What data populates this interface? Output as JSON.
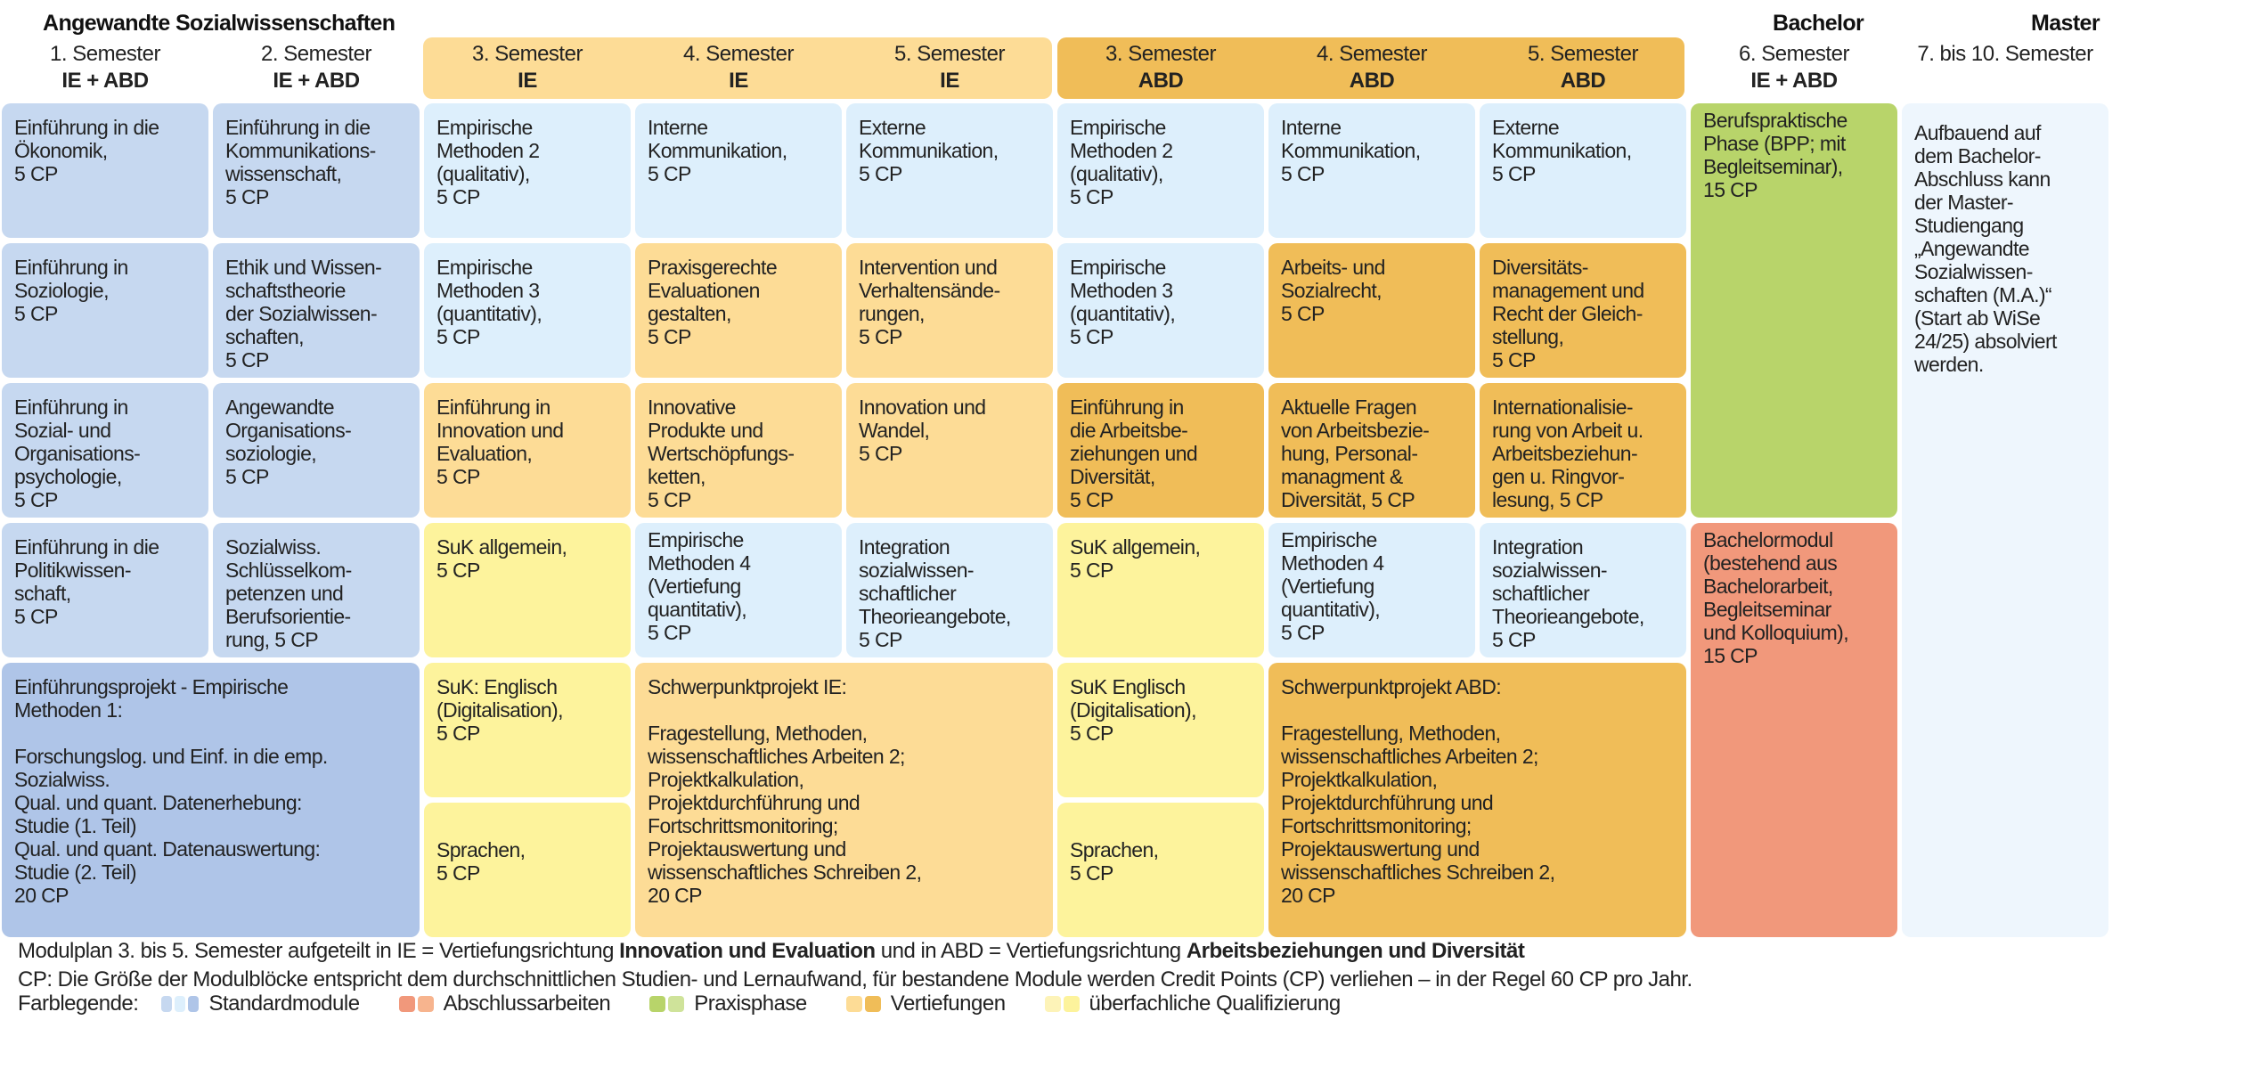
{
  "title": "Angewandte Sozialwissenschaften",
  "degrees": {
    "bachelor": "Bachelor",
    "master": "Master"
  },
  "headers": [
    {
      "sem": "1. Semester",
      "track": "IE + ABD"
    },
    {
      "sem": "2. Semester",
      "track": "IE + ABD"
    },
    {
      "sem": "3. Semester",
      "track": "IE"
    },
    {
      "sem": "4. Semester",
      "track": "IE"
    },
    {
      "sem": "5. Semester",
      "track": "IE"
    },
    {
      "sem": "3. Semester",
      "track": "ABD"
    },
    {
      "sem": "4. Semester",
      "track": "ABD"
    },
    {
      "sem": "5. Semester",
      "track": "ABD"
    },
    {
      "sem": "6. Semester",
      "track": "IE + ABD"
    },
    {
      "sem": "7. bis 10. Semester",
      "track": ""
    }
  ],
  "cells": {
    "c1r1": "Einführung in die\nÖkonomik,\n5 CP",
    "c1r2": "Einführung in\nSoziologie,\n5 CP",
    "c1r3": "Einführung in\nSozial- und\nOrganisations-\npsychologie,\n5 CP",
    "c1r4": "Einführung in die\nPolitikwissen-\nschaft,\n5 CP",
    "c2r1": "Einführung in die\nKommunikations-\nwissenschaft,\n5 CP",
    "c2r2": "Ethik und Wissen-\nschaftstheorie\nder Sozialwissen-\nschaften,\n5 CP",
    "c2r3": "Angewandte\nOrganisations-\nsoziologie,\n5 CP",
    "c2r4": "Sozialwiss.\nSchlüsselkom-\npetenzen und\nBerufsorientie-\nrung,   5 CP",
    "proj1": "Einführungsprojekt - Empirische\nMethoden 1:\n\nForschungslog. und Einf. in die emp.\nSozialwiss.\nQual. und quant. Datenerhebung:\nStudie (1. Teil)\nQual. und quant. Datenauswertung:\nStudie (2. Teil)\n20 CP",
    "c3r1": "Empirische\nMethoden 2\n(qualitativ),\n5 CP",
    "c3r2": "Empirische\nMethoden 3\n(quantitativ),\n5 CP",
    "c3r3": "Einführung in\nInnovation und\nEvaluation,\n5 CP",
    "c3r4": "SuK allgemein,\n5 CP",
    "c3r5": "SuK: Englisch\n(Digitalisation),\n5 CP",
    "c3r6": "Sprachen,\n5 CP",
    "c4r1": "Interne\nKommunikation,\n5 CP",
    "c4r2": "Praxisgerechte\nEvaluationen\ngestalten,\n5 CP",
    "c4r3": "Innovative\nProdukte und\nWertschöpfungs-\nketten,\n5 CP",
    "c4r4": "Empirische\nMethoden 4\n(Vertiefung\nquantitativ),\n5 CP",
    "c5r1": "Externe\nKommunikation,\n5 CP",
    "c5r2": "Intervention und\nVerhaltensände-\nrungen,\n5 CP",
    "c5r3": "Innovation und\nWandel,\n5 CP",
    "c5r4": "Integration\nsozialwissen-\nschaftlicher\nTheorieangebote,\n5 CP",
    "projIE": "Schwerpunktprojekt IE:\n\nFragestellung, Methoden,\nwissenschaftliches Arbeiten 2;\nProjektkalkulation,\nProjektdurchführung und\nFortschrittsmonitoring;\nProjektauswertung und\nwissenschaftliches Schreiben 2,\n20 CP",
    "c6r1": "Empirische\nMethoden 2\n(qualitativ),\n5 CP",
    "c6r2": "Empirische\nMethoden 3\n(quantitativ),\n5 CP",
    "c6r3": "Einführung in\ndie Arbeitsbe-\nziehungen und\nDiversität,\n5 CP",
    "c6r4": "SuK allgemein,\n5 CP",
    "c6r5": "SuK  Englisch\n(Digitalisation),\n5 CP",
    "c6r6": "Sprachen,\n5 CP",
    "c7r1": "Interne\nKommunikation,\n5 CP",
    "c7r2": "Arbeits- und\nSozialrecht,\n5 CP",
    "c7r3": "Aktuelle Fragen\nvon Arbeitsbezie-\nhung, Personal-\nmanagment &\nDiversität, 5 CP",
    "c7r4": "Empirische\nMethoden 4\n(Vertiefung\nquantitativ),\n5 CP",
    "c8r1": "Externe\nKommunikation,\n5 CP",
    "c8r2": "Diversitäts-\nmanagement und\nRecht der Gleich-\nstellung,\n5 CP",
    "c8r3": "Internationalisie-\nrung von Arbeit u.\nArbeitsbeziehun-\ngen u. Ringvor-\nlesung, 5 CP",
    "c8r4": "Integration\nsozialwissen-\nschaftlicher\nTheorieangebote,\n5 CP",
    "projABD": "Schwerpunktprojekt ABD:\n\nFragestellung, Methoden,\nwissenschaftliches Arbeiten 2;\nProjektkalkulation,\nProjektdurchführung und\nFortschrittsmonitoring;\nProjektauswertung und\nwissenschaftliches Schreiben 2,\n20 CP",
    "bpp": "Berufspraktische\nPhase (BPP; mit\nBegleitseminar),\n15 CP",
    "bachelormodul": "Bachelormodul\n(bestehend aus\nBachelorarbeit,\nBegleitseminar\nund Kolloquium),\n15 CP",
    "master": "Aufbauend auf\ndem Bachelor-\nAbschluss kann\nder Master-\nStudiengang\n„Angewandte\nSozialwissen-\nschaften (M.A.)“\n(Start ab WiSe\n24/25) absolviert\nwerden."
  },
  "footer": {
    "line1": {
      "a": "Modulplan 3. bis 5. Semester aufgeteilt in IE = Vertiefungsrichtung ",
      "b": "Innovation und Evaluation",
      "c": " und in ABD = Vertiefungsrichtung ",
      "d": "Arbeitsbeziehungen und Diversität"
    },
    "line2": "CP: Die Größe der Modulblöcke entspricht dem durchschnittlichen Studien- und Lernaufwand, für bestandene Module werden Credit Points (CP) verliehen – in der Regel 60 CP pro Jahr.",
    "legend_label": "Farblegende:",
    "legend": [
      {
        "label": "Standardmodule",
        "colors": [
          "#c6d8f0",
          "#ddeffc",
          "#afc5e8"
        ]
      },
      {
        "label": "Abschlussarbeiten",
        "colors": [
          "#f1987b",
          "#f7b48e"
        ]
      },
      {
        "label": "Praxisphase",
        "colors": [
          "#b8d46a",
          "#cfe39a"
        ]
      },
      {
        "label": "Vertiefungen",
        "colors": [
          "#fddc96",
          "#f0bd58"
        ]
      },
      {
        "label": "überfachliche Qualifizierung",
        "colors": [
          "#fdf3b8",
          "#fdf39c"
        ]
      }
    ]
  },
  "colors": {
    "standard": "#c6d8f0",
    "standard_dark": "#afc5e8",
    "light_blue": "#ddeffc",
    "ie": "#fddc96",
    "abd": "#f0bd58",
    "yellow": "#fdf39c",
    "green": "#b8d46a",
    "red": "#f1987b",
    "master": "#eef6fd"
  }
}
